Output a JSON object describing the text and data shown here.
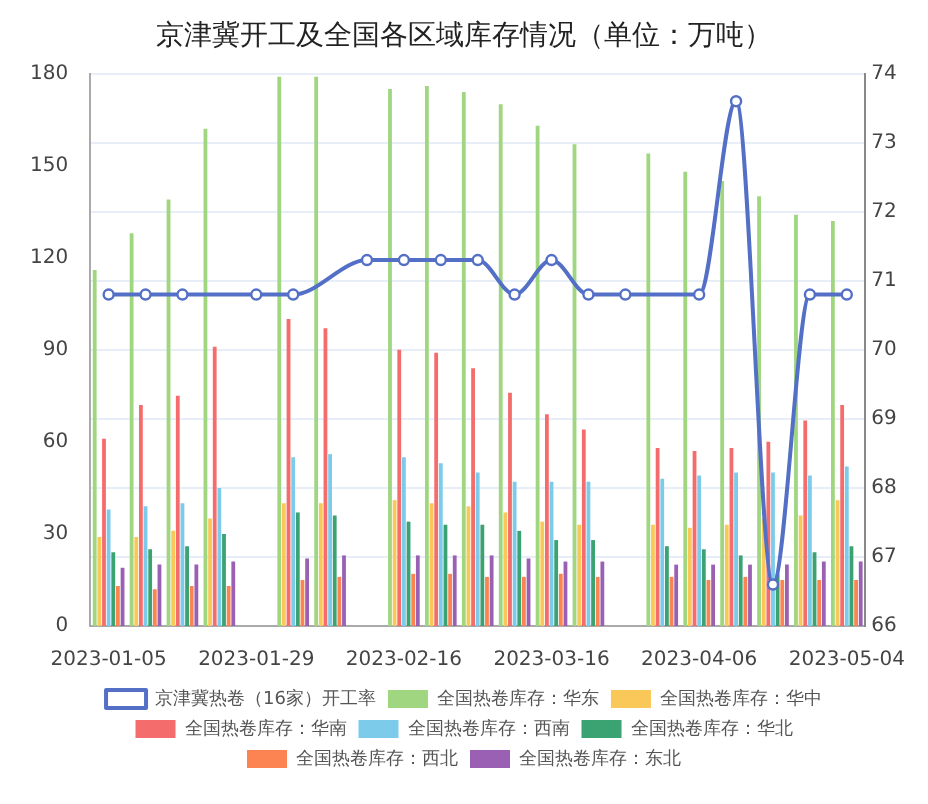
{
  "chart_data": {
    "type": "bar",
    "title": "京津冀开工及全国各区域库存情况（单位：万吨）",
    "categories": [
      "2023-01-05",
      null,
      null,
      null,
      "2023-01-29",
      null,
      null,
      null,
      "2023-02-16",
      null,
      null,
      null,
      "2023-03-16",
      null,
      null,
      null,
      "2023-04-06",
      null,
      null,
      null,
      "2023-05-04"
    ],
    "series": [
      {
        "name": "京津冀热卷（16家）开工率",
        "type": "line",
        "axis": "y2",
        "color": "#5470c6",
        "marker": "circle",
        "values": [
          70.8,
          70.8,
          70.8,
          null,
          70.8,
          70.8,
          null,
          71.3,
          71.3,
          71.3,
          71.3,
          70.8,
          71.3,
          70.8,
          70.8,
          null,
          70.8,
          73.6,
          66.6,
          70.8,
          70.8
        ]
      },
      {
        "name": "全国热卷库存：华东",
        "color": "#9fd67f",
        "values": [
          116,
          128,
          139,
          162,
          null,
          179,
          179,
          null,
          175,
          176,
          174,
          170,
          163,
          157,
          null,
          154,
          148,
          145,
          140,
          134,
          132
        ]
      },
      {
        "name": "全国热卷库存：华中",
        "color": "#fac858",
        "values": [
          29,
          29,
          31,
          35,
          null,
          40,
          40,
          null,
          41,
          40,
          39,
          37,
          34,
          33,
          null,
          33,
          32,
          33,
          35,
          36,
          41
        ]
      },
      {
        "name": "全国热卷库存：华南",
        "color": "#f56c6c",
        "values": [
          61,
          72,
          75,
          91,
          null,
          100,
          97,
          null,
          90,
          89,
          84,
          76,
          69,
          64,
          null,
          58,
          57,
          58,
          60,
          67,
          72
        ]
      },
      {
        "name": "全国热卷库存：西南",
        "color": "#7ccbea",
        "values": [
          38,
          39,
          40,
          45,
          null,
          55,
          56,
          null,
          55,
          53,
          50,
          47,
          47,
          47,
          null,
          48,
          49,
          50,
          50,
          49,
          52
        ]
      },
      {
        "name": "全国热卷库存：华北",
        "color": "#3ba272",
        "values": [
          24,
          25,
          26,
          30,
          null,
          37,
          36,
          null,
          34,
          33,
          33,
          31,
          28,
          28,
          null,
          26,
          25,
          23,
          17,
          24,
          26
        ]
      },
      {
        "name": "全国热卷库存：西北",
        "color": "#fc8452",
        "values": [
          13,
          12,
          13,
          13,
          null,
          15,
          16,
          null,
          17,
          17,
          16,
          16,
          17,
          16,
          null,
          16,
          15,
          16,
          15,
          15,
          15
        ]
      },
      {
        "name": "全国热卷库存：东北",
        "color": "#9a60b4",
        "values": [
          19,
          20,
          20,
          21,
          null,
          22,
          23,
          null,
          23,
          23,
          23,
          22,
          21,
          21,
          null,
          20,
          20,
          20,
          20,
          21,
          21
        ]
      }
    ],
    "ylim": [
      0,
      180
    ],
    "yticks": [
      0,
      30,
      60,
      90,
      120,
      150,
      180
    ],
    "y2lim": [
      66,
      74
    ],
    "y2ticks": [
      66,
      67,
      68,
      69,
      70,
      71,
      72,
      73,
      74
    ],
    "grid": "y",
    "legend": "bottom"
  }
}
